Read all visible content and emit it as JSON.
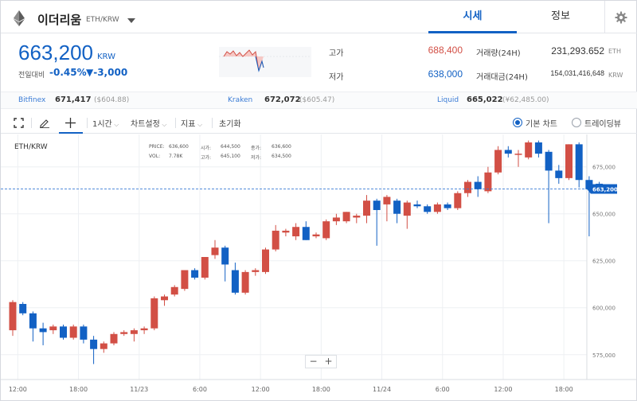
{
  "header": {
    "coin_name": "이더리움",
    "pair": "ETH/KRW",
    "tabs": [
      "시세",
      "정보"
    ],
    "eth_icon": "ethereum-logo-icon",
    "dropdown_icon": "caret-down-icon",
    "settings_icon": "gear-icon"
  },
  "ticker": {
    "price": "663,200",
    "unit": "KRW",
    "change_label": "전일대비",
    "change_rate": "-0.45%",
    "change_amount": "▼-3,000",
    "high_label": "고가",
    "high_value": "688,400",
    "low_label": "저가",
    "low_value": "638,000",
    "volume_label": "거래량(24H)",
    "volume_value": "231,293.652",
    "volume_unit": "ETH",
    "amount_label": "거래대금(24H)",
    "amount_value": "154,031,416,648",
    "amount_unit": "KRW",
    "colors": {
      "down": "#1261c4",
      "up": "#d24f45"
    }
  },
  "exchanges": [
    {
      "name": "Bitfinex",
      "krw": "671,417",
      "usd": "($604.88)"
    },
    {
      "name": "Kraken",
      "krw": "672,072",
      "usd": "($605.47)"
    },
    {
      "name": "Liquid",
      "krw": "665,022",
      "usd": "(¥62,485.00)"
    }
  ],
  "toolbar": {
    "interval": "1시간",
    "chart_settings": "차트설정",
    "indicators": "지표",
    "reset": "초기화",
    "basic_chart": "기본 차트",
    "trading_view": "트레이딩뷰",
    "icons": [
      "fullscreen-icon",
      "pencil-icon",
      "crosshair-icon",
      "chevron-down-icon"
    ]
  },
  "chart_data": {
    "type": "candlestick",
    "symbol": "ETH/KRW",
    "legend": {
      "price_label": "PRICE:",
      "price": "636,600",
      "open_label": "시가:",
      "open": "644,500",
      "close_label": "종가:",
      "close": "636,600",
      "vol_label": "VOL:",
      "vol": "7.78K",
      "high_label": "고가:",
      "high": "645,100",
      "low_label": "저가:",
      "low": "634,500"
    },
    "ylim": [
      565000,
      690000
    ],
    "y_ticks": [
      "675,000",
      "650,000",
      "625,000",
      "600,000",
      "575,000"
    ],
    "y_tick_values": [
      675000,
      650000,
      625000,
      600000,
      575000
    ],
    "x_ticks": [
      "12:00",
      "18:00",
      "11/23",
      "6:00",
      "12:00",
      "18:00",
      "11/24",
      "6:00",
      "12:00",
      "18:00"
    ],
    "x_tick_index": [
      0.5,
      6.5,
      12.5,
      18.5,
      24.5,
      30.5,
      36.5,
      42.5,
      48.5,
      54.5
    ],
    "current_price": 663200,
    "current_price_label": "663,200",
    "candles": [
      {
        "o": 588000,
        "h": 604000,
        "l": 585000,
        "c": 603000
      },
      {
        "o": 602000,
        "h": 603000,
        "l": 596000,
        "c": 597000
      },
      {
        "o": 597000,
        "h": 598000,
        "l": 582000,
        "c": 589000
      },
      {
        "o": 589000,
        "h": 592000,
        "l": 580000,
        "c": 587000
      },
      {
        "o": 588000,
        "h": 591000,
        "l": 586000,
        "c": 590000
      },
      {
        "o": 590000,
        "h": 591000,
        "l": 583000,
        "c": 584000
      },
      {
        "o": 584000,
        "h": 591000,
        "l": 583000,
        "c": 590000
      },
      {
        "o": 590000,
        "h": 591000,
        "l": 581000,
        "c": 583000
      },
      {
        "o": 583000,
        "h": 585000,
        "l": 570000,
        "c": 578000
      },
      {
        "o": 578000,
        "h": 582000,
        "l": 576000,
        "c": 581000
      },
      {
        "o": 581000,
        "h": 587000,
        "l": 580000,
        "c": 586000
      },
      {
        "o": 586000,
        "h": 588000,
        "l": 585000,
        "c": 587000
      },
      {
        "o": 586000,
        "h": 589000,
        "l": 582000,
        "c": 588000
      },
      {
        "o": 588000,
        "h": 590000,
        "l": 586000,
        "c": 589000
      },
      {
        "o": 589000,
        "h": 606000,
        "l": 588000,
        "c": 605000
      },
      {
        "o": 604000,
        "h": 607000,
        "l": 601000,
        "c": 606000
      },
      {
        "o": 607000,
        "h": 612000,
        "l": 606000,
        "c": 611000
      },
      {
        "o": 610000,
        "h": 620000,
        "l": 609000,
        "c": 620000
      },
      {
        "o": 620000,
        "h": 621000,
        "l": 615000,
        "c": 616000
      },
      {
        "o": 616000,
        "h": 627000,
        "l": 615000,
        "c": 627000
      },
      {
        "o": 628000,
        "h": 636000,
        "l": 626000,
        "c": 632000
      },
      {
        "o": 632000,
        "h": 633000,
        "l": 614000,
        "c": 623000
      },
      {
        "o": 620000,
        "h": 624000,
        "l": 607000,
        "c": 608000
      },
      {
        "o": 608000,
        "h": 620000,
        "l": 607000,
        "c": 619000
      },
      {
        "o": 619000,
        "h": 621000,
        "l": 617000,
        "c": 620000
      },
      {
        "o": 619000,
        "h": 632000,
        "l": 618000,
        "c": 631000
      },
      {
        "o": 631000,
        "h": 644000,
        "l": 630000,
        "c": 641000
      },
      {
        "o": 640000,
        "h": 642000,
        "l": 638000,
        "c": 641000
      },
      {
        "o": 638000,
        "h": 645000,
        "l": 636000,
        "c": 643000
      },
      {
        "o": 643000,
        "h": 646000,
        "l": 636000,
        "c": 636000
      },
      {
        "o": 638000,
        "h": 640000,
        "l": 637000,
        "c": 639000
      },
      {
        "o": 637000,
        "h": 647000,
        "l": 636000,
        "c": 646000
      },
      {
        "o": 646000,
        "h": 650000,
        "l": 644000,
        "c": 648000
      },
      {
        "o": 646000,
        "h": 651000,
        "l": 645000,
        "c": 651000
      },
      {
        "o": 648000,
        "h": 650000,
        "l": 645000,
        "c": 649000
      },
      {
        "o": 649000,
        "h": 660000,
        "l": 645000,
        "c": 657000
      },
      {
        "o": 657000,
        "h": 658000,
        "l": 633000,
        "c": 652000
      },
      {
        "o": 655000,
        "h": 660000,
        "l": 646000,
        "c": 659000
      },
      {
        "o": 657000,
        "h": 658000,
        "l": 645000,
        "c": 650000
      },
      {
        "o": 649000,
        "h": 657000,
        "l": 642000,
        "c": 656000
      },
      {
        "o": 655000,
        "h": 657000,
        "l": 653000,
        "c": 654000
      },
      {
        "o": 654000,
        "h": 655000,
        "l": 650000,
        "c": 651000
      },
      {
        "o": 651000,
        "h": 656000,
        "l": 650000,
        "c": 655000
      },
      {
        "o": 655000,
        "h": 656000,
        "l": 652000,
        "c": 653000
      },
      {
        "o": 653000,
        "h": 662000,
        "l": 652000,
        "c": 661000
      },
      {
        "o": 661000,
        "h": 668000,
        "l": 659000,
        "c": 667000
      },
      {
        "o": 667000,
        "h": 670000,
        "l": 659000,
        "c": 663000
      },
      {
        "o": 662000,
        "h": 675000,
        "l": 661000,
        "c": 672000
      },
      {
        "o": 672000,
        "h": 686000,
        "l": 671000,
        "c": 684000
      },
      {
        "o": 684000,
        "h": 686000,
        "l": 680000,
        "c": 682000
      },
      {
        "o": 682000,
        "h": 684000,
        "l": 675000,
        "c": 682000
      },
      {
        "o": 680000,
        "h": 689000,
        "l": 679000,
        "c": 688000
      },
      {
        "o": 688000,
        "h": 689000,
        "l": 680000,
        "c": 682000
      },
      {
        "o": 683000,
        "h": 684000,
        "l": 645000,
        "c": 673000
      },
      {
        "o": 673000,
        "h": 676000,
        "l": 666000,
        "c": 669000
      },
      {
        "o": 669000,
        "h": 687000,
        "l": 668000,
        "c": 687000
      },
      {
        "o": 687000,
        "h": 688000,
        "l": 664000,
        "c": 668000
      },
      {
        "o": 668000,
        "h": 670000,
        "l": 638000,
        "c": 663000
      },
      {
        "o": 666000,
        "h": 667000,
        "l": 662000,
        "c": 663000
      }
    ]
  },
  "zoom": {
    "minus": "−",
    "plus": "+"
  }
}
